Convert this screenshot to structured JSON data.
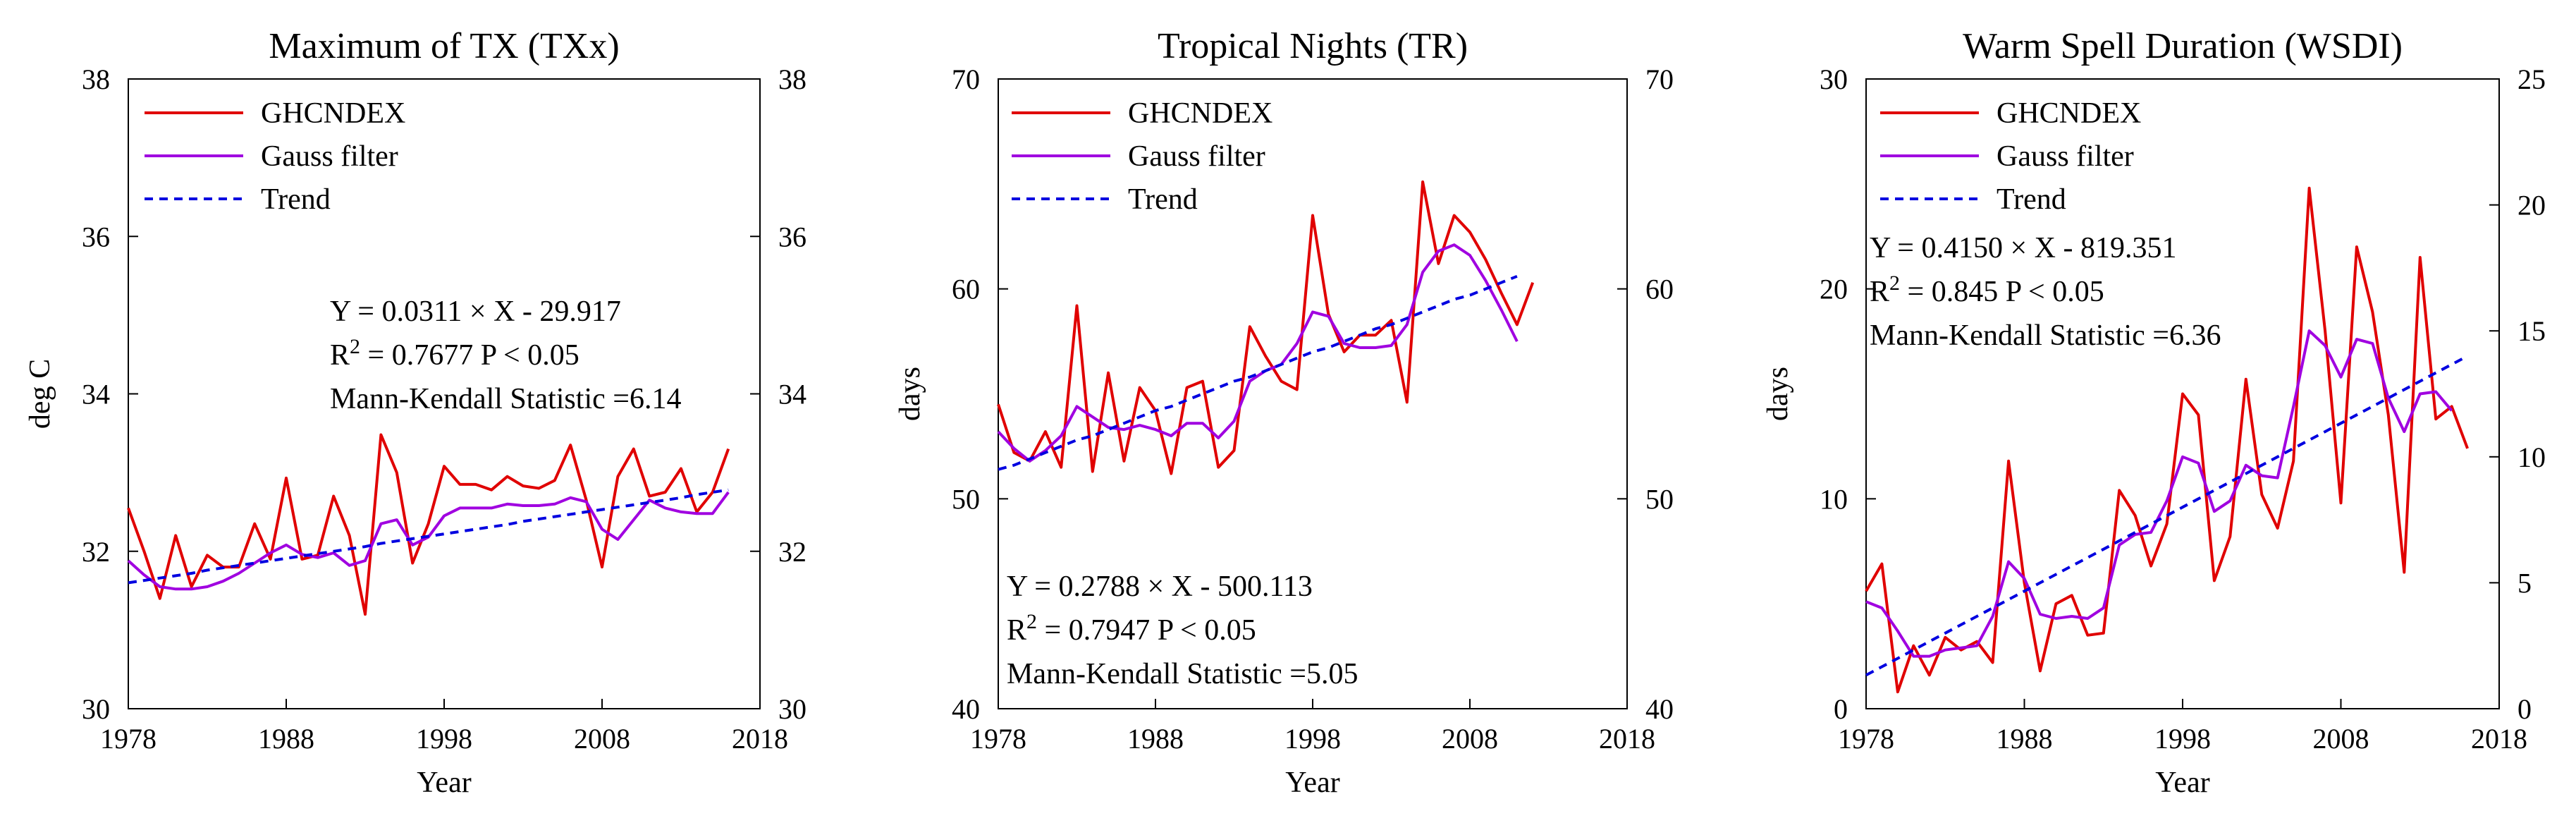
{
  "chart_data": [
    {
      "type": "line",
      "title": "Maximum of TX (TXx)",
      "xlabel": "Year",
      "ylabel": "deg C",
      "xlim": [
        1978,
        2018
      ],
      "ylim": [
        30,
        38
      ],
      "xticks": [
        1978,
        1988,
        1998,
        2008,
        2018
      ],
      "yticks": [
        30,
        32,
        34,
        36,
        38
      ],
      "right_ylim": [
        30,
        38
      ],
      "right_yticks": [
        30,
        32,
        34,
        36,
        38
      ],
      "legend": {
        "position": "top-left",
        "entries": [
          "GHCNDEX",
          "Gauss filter",
          "Trend"
        ]
      },
      "annotations": [
        "Y = 0.0311 × X - 29.917",
        "R",
        "2",
        " = 0.7677   P < 0.05",
        "Mann-Kendall Statistic =6.14"
      ],
      "x": [
        1978,
        1979,
        1980,
        1981,
        1982,
        1983,
        1984,
        1985,
        1986,
        1987,
        1988,
        1989,
        1990,
        1991,
        1992,
        1993,
        1994,
        1995,
        1996,
        1997,
        1998,
        1999,
        2000,
        2001,
        2002,
        2003,
        2004,
        2005,
        2006,
        2007,
        2008,
        2009,
        2010,
        2011,
        2012,
        2013,
        2014,
        2015,
        2016
      ],
      "series": [
        {
          "name": "GHCNDEX",
          "color": "#e00000",
          "style": "solid",
          "values": [
            32.55,
            32.0,
            31.4,
            32.2,
            31.55,
            31.95,
            31.8,
            31.8,
            32.35,
            31.9,
            32.93,
            31.9,
            31.95,
            32.7,
            32.2,
            31.2,
            33.48,
            33.0,
            31.85,
            32.35,
            33.08,
            32.85,
            32.85,
            32.78,
            32.95,
            32.83,
            32.8,
            32.9,
            33.35,
            32.65,
            31.8,
            32.95,
            33.3,
            32.7,
            32.75,
            33.05,
            32.5,
            32.75,
            33.3
          ]
        },
        {
          "name": "Gauss filter",
          "color": "#a000e0",
          "style": "solid",
          "values": [
            31.88,
            31.7,
            31.55,
            31.52,
            31.52,
            31.55,
            31.62,
            31.72,
            31.85,
            31.98,
            32.08,
            31.96,
            31.92,
            31.98,
            31.82,
            31.88,
            32.35,
            32.4,
            32.08,
            32.18,
            32.45,
            32.55,
            32.55,
            32.55,
            32.6,
            32.58,
            32.58,
            32.6,
            32.68,
            32.63,
            32.28,
            32.15,
            32.4,
            32.65,
            32.55,
            32.5,
            32.48,
            32.48,
            32.75
          ]
        },
        {
          "name": "Trend",
          "color": "#0000e0",
          "style": "dashed",
          "values": [
            31.6,
            31.63,
            31.66,
            31.69,
            31.72,
            31.76,
            31.79,
            31.82,
            31.85,
            31.88,
            31.91,
            31.94,
            31.97,
            32.0,
            32.03,
            32.06,
            32.1,
            32.13,
            32.16,
            32.19,
            32.22,
            32.25,
            32.28,
            32.31,
            32.34,
            32.38,
            32.41,
            32.44,
            32.47,
            32.5,
            32.53,
            32.56,
            32.59,
            32.62,
            32.65,
            32.68,
            32.72,
            32.75,
            32.78
          ]
        }
      ]
    },
    {
      "type": "line",
      "title": "Tropical Nights (TR)",
      "xlabel": "Year",
      "ylabel": "days",
      "xlim": [
        1978,
        2018
      ],
      "ylim": [
        40,
        70
      ],
      "xticks": [
        1978,
        1988,
        1998,
        2008,
        2018
      ],
      "yticks": [
        40,
        50,
        60,
        70
      ],
      "right_ylim": [
        40,
        70
      ],
      "right_yticks": [
        40,
        50,
        60,
        70
      ],
      "legend": {
        "position": "top-left",
        "entries": [
          "GHCNDEX",
          "Gauss filter",
          "Trend"
        ]
      },
      "annotations": [
        "Y = 0.2788 × X - 500.113",
        "R",
        "2",
        " = 0.7947    P < 0.05",
        "Mann-Kendall Statistic =5.05"
      ],
      "x": [
        1978,
        1979,
        1980,
        1981,
        1982,
        1983,
        1984,
        1985,
        1986,
        1987,
        1988,
        1989,
        1990,
        1991,
        1992,
        1993,
        1994,
        1995,
        1996,
        1997,
        1998,
        1999,
        2000,
        2001,
        2002,
        2003,
        2004,
        2005,
        2006,
        2007,
        2008,
        2009,
        2010,
        2011,
        2012,
        2013
      ],
      "series": [
        {
          "name": "GHCNDEX",
          "color": "#e00000",
          "style": "solid",
          "values": [
            54.5,
            52.2,
            51.8,
            53.2,
            51.5,
            59.2,
            51.3,
            56.0,
            51.8,
            55.3,
            54.2,
            51.2,
            55.3,
            55.6,
            51.5,
            52.3,
            58.2,
            56.8,
            55.6,
            55.2,
            63.5,
            58.8,
            57.0,
            57.8,
            57.8,
            58.5,
            54.6,
            65.1,
            61.2,
            63.5,
            62.7,
            61.4,
            59.8,
            58.3,
            60.3,
            null
          ]
        },
        {
          "name": "Gauss filter",
          "color": "#a000e0",
          "style": "solid",
          "values": [
            53.2,
            52.4,
            51.8,
            52.3,
            53.0,
            54.4,
            53.9,
            53.4,
            53.3,
            53.5,
            53.3,
            53.0,
            53.6,
            53.6,
            52.9,
            53.7,
            55.6,
            56.1,
            56.4,
            57.4,
            58.9,
            58.7,
            57.4,
            57.2,
            57.2,
            57.3,
            58.3,
            60.8,
            61.8,
            62.1,
            61.6,
            60.4,
            59.0,
            57.5,
            null,
            null
          ]
        },
        {
          "name": "Trend",
          "color": "#0000e0",
          "style": "dashed",
          "values": [
            51.4,
            51.6,
            51.9,
            52.2,
            52.5,
            52.8,
            53.0,
            53.3,
            53.6,
            53.9,
            54.2,
            54.4,
            54.7,
            55.0,
            55.3,
            55.6,
            55.8,
            56.1,
            56.4,
            56.7,
            57.0,
            57.2,
            57.5,
            57.8,
            58.1,
            58.3,
            58.6,
            58.9,
            59.2,
            59.5,
            59.7,
            60.0,
            60.3,
            60.6,
            null,
            null
          ]
        }
      ]
    },
    {
      "type": "line",
      "title": "Warm Spell Duration (WSDI)",
      "xlabel": "Year",
      "ylabel": "days",
      "xlim": [
        1978,
        2018
      ],
      "ylim": [
        0,
        30
      ],
      "xticks": [
        1978,
        1988,
        1998,
        2008,
        2018
      ],
      "yticks": [
        0,
        10,
        20,
        30
      ],
      "right_ylim": [
        0,
        25
      ],
      "right_yticks": [
        0,
        5,
        10,
        15,
        20,
        25
      ],
      "legend": {
        "position": "top-left",
        "entries": [
          "GHCNDEX",
          "Gauss filter",
          "Trend"
        ]
      },
      "annotations": [
        "Y = 0.4150 × X - 819.351",
        "R",
        "2",
        " = 0.845    P < 0.05",
        "Mann-Kendall Statistic =6.36"
      ],
      "x": [
        1978,
        1979,
        1980,
        1981,
        1982,
        1983,
        1984,
        1985,
        1986,
        1987,
        1988,
        1989,
        1990,
        1991,
        1992,
        1993,
        1994,
        1995,
        1996,
        1997,
        1998,
        1999,
        2000,
        2001,
        2002,
        2003,
        2004,
        2005,
        2006,
        2007,
        2008,
        2009,
        2010,
        2011,
        2012,
        2013,
        2014,
        2015,
        2016
      ],
      "series": [
        {
          "name": "GHCNDEX",
          "color": "#e00000",
          "style": "solid",
          "values": [
            5.6,
            6.9,
            0.8,
            3.0,
            1.6,
            3.4,
            2.8,
            3.2,
            2.2,
            11.8,
            6.0,
            1.8,
            5.0,
            5.4,
            3.5,
            3.6,
            10.4,
            9.2,
            6.8,
            8.8,
            15.0,
            14.0,
            6.1,
            8.2,
            15.7,
            10.2,
            8.6,
            11.8,
            24.8,
            18.0,
            9.8,
            22.0,
            18.9,
            14.0,
            6.5,
            21.5,
            13.8,
            14.4,
            12.4
          ]
        },
        {
          "name": "Gauss filter",
          "color": "#a000e0",
          "style": "solid",
          "values": [
            5.1,
            4.8,
            3.7,
            2.5,
            2.5,
            2.8,
            2.9,
            3.0,
            4.4,
            7.0,
            6.2,
            4.5,
            4.3,
            4.4,
            4.3,
            4.8,
            7.8,
            8.3,
            8.4,
            9.9,
            12.0,
            11.7,
            9.4,
            9.9,
            11.6,
            11.1,
            11.0,
            14.4,
            18.0,
            17.3,
            15.8,
            17.6,
            17.4,
            14.8,
            13.2,
            15.0,
            15.1,
            14.2,
            null
          ]
        },
        {
          "name": "Trend",
          "color": "#0000e0",
          "style": "dashed",
          "values": [
            1.6,
            2.0,
            2.4,
            2.8,
            3.2,
            3.6,
            4.0,
            4.4,
            4.8,
            5.2,
            5.6,
            6.0,
            6.4,
            6.8,
            7.2,
            7.6,
            8.0,
            8.4,
            8.8,
            9.2,
            9.6,
            10.0,
            10.4,
            10.8,
            11.2,
            11.6,
            12.0,
            12.4,
            12.8,
            13.2,
            13.6,
            14.0,
            14.4,
            14.8,
            15.2,
            15.6,
            16.0,
            16.4,
            16.8
          ]
        }
      ]
    }
  ]
}
